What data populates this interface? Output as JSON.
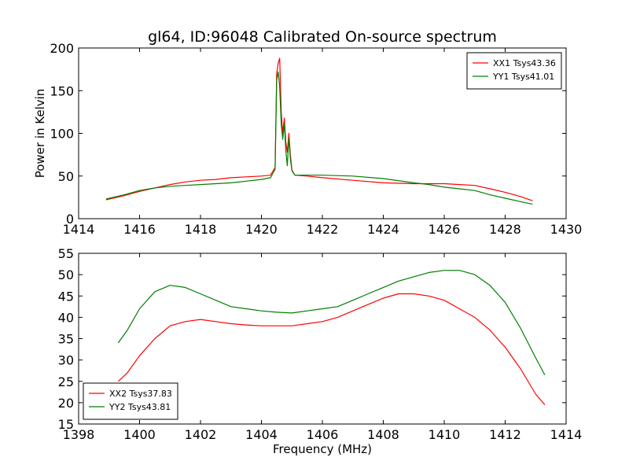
{
  "title": "gl64, ID:96048 Calibrated On-source spectrum",
  "colors": {
    "red": "#ff0000",
    "green": "#007f00"
  },
  "chart_data": [
    {
      "type": "line",
      "ylabel": "Power in Kelvin",
      "xlim": [
        1414,
        1430
      ],
      "ylim": [
        0,
        200
      ],
      "xticks": [
        1414,
        1416,
        1418,
        1420,
        1422,
        1424,
        1426,
        1428,
        1430
      ],
      "yticks": [
        0,
        50,
        100,
        150,
        200
      ],
      "legend": "top-right",
      "series": [
        {
          "name": "XX1 Tsys43.36",
          "color": "red",
          "points": [
            [
              1414.9,
              22
            ],
            [
              1415.5,
              27
            ],
            [
              1416.0,
              32
            ],
            [
              1416.5,
              36
            ],
            [
              1417.0,
              40
            ],
            [
              1417.5,
              43
            ],
            [
              1418.0,
              45
            ],
            [
              1418.5,
              46
            ],
            [
              1419.0,
              48
            ],
            [
              1419.5,
              49
            ],
            [
              1420.0,
              50
            ],
            [
              1420.3,
              51
            ],
            [
              1420.45,
              60
            ],
            [
              1420.5,
              170
            ],
            [
              1420.55,
              182
            ],
            [
              1420.6,
              188
            ],
            [
              1420.65,
              125
            ],
            [
              1420.7,
              100
            ],
            [
              1420.75,
              118
            ],
            [
              1420.8,
              90
            ],
            [
              1420.85,
              78
            ],
            [
              1420.9,
              100
            ],
            [
              1420.95,
              75
            ],
            [
              1421.0,
              57
            ],
            [
              1421.1,
              51
            ],
            [
              1421.5,
              50
            ],
            [
              1422.0,
              48
            ],
            [
              1423.0,
              45
            ],
            [
              1424.0,
              42
            ],
            [
              1425.0,
              41
            ],
            [
              1426.0,
              41
            ],
            [
              1426.5,
              40
            ],
            [
              1427.0,
              39
            ],
            [
              1427.5,
              35
            ],
            [
              1428.0,
              31
            ],
            [
              1428.5,
              26
            ],
            [
              1428.9,
              21
            ]
          ]
        },
        {
          "name": "YY1 Tsys41.01",
          "color": "green",
          "points": [
            [
              1414.9,
              23
            ],
            [
              1415.5,
              28
            ],
            [
              1416.0,
              33
            ],
            [
              1416.5,
              36
            ],
            [
              1417.0,
              38
            ],
            [
              1417.5,
              39
            ],
            [
              1418.0,
              40
            ],
            [
              1418.5,
              41
            ],
            [
              1419.0,
              42
            ],
            [
              1419.5,
              44
            ],
            [
              1420.0,
              46
            ],
            [
              1420.3,
              48
            ],
            [
              1420.45,
              58
            ],
            [
              1420.5,
              162
            ],
            [
              1420.55,
              172
            ],
            [
              1420.6,
              155
            ],
            [
              1420.65,
              110
            ],
            [
              1420.7,
              93
            ],
            [
              1420.75,
              112
            ],
            [
              1420.8,
              80
            ],
            [
              1420.85,
              62
            ],
            [
              1420.9,
              95
            ],
            [
              1420.95,
              70
            ],
            [
              1421.0,
              56
            ],
            [
              1421.1,
              51
            ],
            [
              1421.5,
              51
            ],
            [
              1422.0,
              51
            ],
            [
              1423.0,
              50
            ],
            [
              1424.0,
              47
            ],
            [
              1425.0,
              42
            ],
            [
              1425.5,
              40
            ],
            [
              1426.0,
              37
            ],
            [
              1426.5,
              35
            ],
            [
              1427.0,
              33
            ],
            [
              1427.5,
              28
            ],
            [
              1428.0,
              24
            ],
            [
              1428.5,
              20
            ],
            [
              1428.9,
              17
            ]
          ]
        }
      ]
    },
    {
      "type": "line",
      "xlabel": "Frequency (MHz)",
      "xlim": [
        1398,
        1414
      ],
      "ylim": [
        15,
        55
      ],
      "xticks": [
        1398,
        1400,
        1402,
        1404,
        1406,
        1408,
        1410,
        1412,
        1414
      ],
      "yticks": [
        15,
        20,
        25,
        30,
        35,
        40,
        45,
        50,
        55
      ],
      "legend": "bottom-left",
      "series": [
        {
          "name": "XX2 Tsys37.83",
          "color": "red",
          "points": [
            [
              1399.3,
              25
            ],
            [
              1399.6,
              27
            ],
            [
              1400.0,
              31
            ],
            [
              1400.5,
              35
            ],
            [
              1401.0,
              38
            ],
            [
              1401.5,
              39
            ],
            [
              1402.0,
              39.5
            ],
            [
              1402.5,
              39
            ],
            [
              1403.0,
              38.5
            ],
            [
              1403.5,
              38.2
            ],
            [
              1404.0,
              38
            ],
            [
              1404.5,
              38
            ],
            [
              1405.0,
              38
            ],
            [
              1405.5,
              38.5
            ],
            [
              1406.0,
              39
            ],
            [
              1406.5,
              40
            ],
            [
              1407.0,
              41.5
            ],
            [
              1407.5,
              43
            ],
            [
              1408.0,
              44.5
            ],
            [
              1408.5,
              45.5
            ],
            [
              1409.0,
              45.5
            ],
            [
              1409.5,
              45
            ],
            [
              1410.0,
              44
            ],
            [
              1410.5,
              42
            ],
            [
              1411.0,
              40
            ],
            [
              1411.5,
              37
            ],
            [
              1412.0,
              33
            ],
            [
              1412.5,
              28
            ],
            [
              1413.0,
              22
            ],
            [
              1413.3,
              19.5
            ]
          ]
        },
        {
          "name": "YY2 Tsys43.81",
          "color": "green",
          "points": [
            [
              1399.3,
              34
            ],
            [
              1399.6,
              37
            ],
            [
              1400.0,
              42
            ],
            [
              1400.5,
              46
            ],
            [
              1401.0,
              47.5
            ],
            [
              1401.5,
              47
            ],
            [
              1402.0,
              45.5
            ],
            [
              1402.5,
              44
            ],
            [
              1403.0,
              42.5
            ],
            [
              1403.5,
              42
            ],
            [
              1404.0,
              41.5
            ],
            [
              1404.5,
              41.2
            ],
            [
              1405.0,
              41
            ],
            [
              1405.5,
              41.5
            ],
            [
              1406.0,
              42
            ],
            [
              1406.5,
              42.5
            ],
            [
              1407.0,
              44
            ],
            [
              1407.5,
              45.5
            ],
            [
              1408.0,
              47
            ],
            [
              1408.5,
              48.5
            ],
            [
              1409.0,
              49.5
            ],
            [
              1409.5,
              50.5
            ],
            [
              1410.0,
              51
            ],
            [
              1410.5,
              51
            ],
            [
              1411.0,
              50
            ],
            [
              1411.5,
              47.5
            ],
            [
              1412.0,
              43.5
            ],
            [
              1412.5,
              37.5
            ],
            [
              1413.0,
              30.5
            ],
            [
              1413.3,
              26.5
            ]
          ]
        }
      ]
    }
  ]
}
